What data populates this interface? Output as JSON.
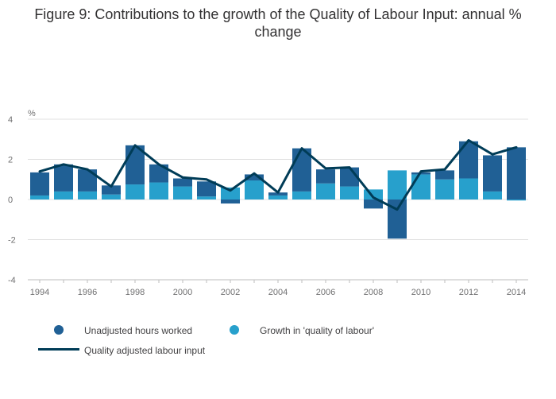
{
  "chart_data": {
    "type": "bar",
    "title": "Figure 9: Contributions to the growth of the Quality of Labour Input: annual % change",
    "ylabel": "%",
    "xlabel": "",
    "ylim": [
      -4,
      4
    ],
    "yticks": [
      4,
      2,
      0,
      -2,
      -4
    ],
    "grid": true,
    "stacked": true,
    "legend_position": "bottom",
    "categories": [
      "1994",
      "1995",
      "1996",
      "1997",
      "1998",
      "1999",
      "2000",
      "2001",
      "2002",
      "2003",
      "2004",
      "2005",
      "2006",
      "2007",
      "2008",
      "2009",
      "2010",
      "2011",
      "2012",
      "2013",
      "2014"
    ],
    "x_tick_labels": [
      "1994",
      "1996",
      "1998",
      "2000",
      "2002",
      "2004",
      "2006",
      "2008",
      "2010",
      "2012",
      "2014"
    ],
    "series": [
      {
        "name": "Unadjusted hours worked",
        "kind": "bar",
        "color": "#206095",
        "values": [
          1.15,
          1.35,
          1.1,
          0.45,
          1.95,
          0.9,
          0.4,
          0.75,
          -0.2,
          0.3,
          0.15,
          2.15,
          0.7,
          0.95,
          -0.45,
          -1.95,
          0.1,
          0.45,
          1.85,
          1.8,
          2.6
        ]
      },
      {
        "name": "Growth in 'quality of labour'",
        "kind": "bar",
        "color": "#27a0cc",
        "values": [
          0.2,
          0.4,
          0.4,
          0.25,
          0.75,
          0.85,
          0.65,
          0.15,
          0.6,
          0.95,
          0.2,
          0.4,
          0.8,
          0.65,
          0.5,
          1.45,
          1.25,
          1.0,
          1.05,
          0.4,
          -0.05
        ]
      },
      {
        "name": "Quality adjusted labour input",
        "kind": "line",
        "color": "#003c57",
        "values": [
          1.4,
          1.75,
          1.5,
          0.65,
          2.7,
          1.75,
          1.1,
          1.0,
          0.45,
          1.3,
          0.35,
          2.55,
          1.55,
          1.6,
          0.1,
          -0.5,
          1.4,
          1.5,
          2.95,
          2.25,
          2.6
        ]
      }
    ]
  }
}
